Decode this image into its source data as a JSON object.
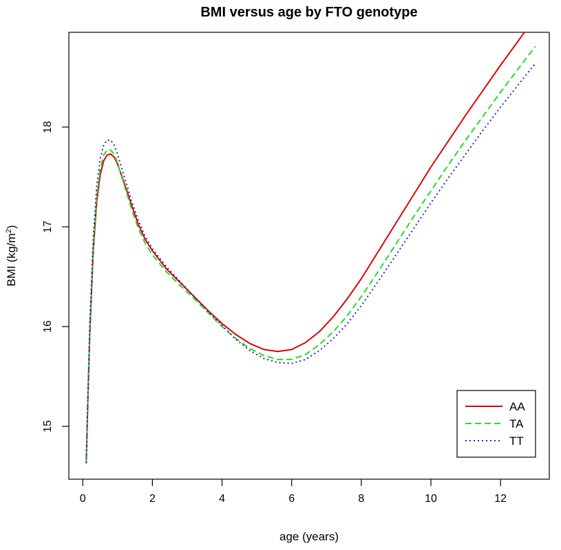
{
  "chart_data": {
    "type": "line",
    "title": "BMI versus age by FTO genotype",
    "xlabel": "age (years)",
    "ylabel": {
      "main": "BMI  (kg/m",
      "sup": "2",
      "end": ")"
    },
    "xlim": [
      -0.4,
      13.4
    ],
    "ylim": [
      14.47,
      18.95
    ],
    "xticks": [
      0,
      2,
      4,
      6,
      8,
      10,
      12
    ],
    "yticks": [
      15,
      16,
      17,
      18
    ],
    "legend_position": "bottom-right",
    "series": [
      {
        "name": "AA",
        "color": "#dd0000",
        "style": "solid",
        "x": [
          0.1,
          0.15,
          0.2,
          0.3,
          0.4,
          0.5,
          0.6,
          0.7,
          0.8,
          0.9,
          1.0,
          1.1,
          1.25,
          1.4,
          1.6,
          1.8,
          2.0,
          2.4,
          2.8,
          3.2,
          3.6,
          4.0,
          4.4,
          4.8,
          5.2,
          5.6,
          6.0,
          6.4,
          6.8,
          7.2,
          7.6,
          8.0,
          8.5,
          9.0,
          9.5,
          10.0,
          10.5,
          11.0,
          11.5,
          12.0,
          12.5,
          13.0
        ],
        "y": [
          14.63,
          15.3,
          15.9,
          16.75,
          17.25,
          17.52,
          17.66,
          17.72,
          17.73,
          17.7,
          17.63,
          17.53,
          17.38,
          17.22,
          17.02,
          16.87,
          16.76,
          16.58,
          16.44,
          16.3,
          16.16,
          16.03,
          15.92,
          15.83,
          15.77,
          15.75,
          15.77,
          15.84,
          15.95,
          16.1,
          16.28,
          16.48,
          16.76,
          17.04,
          17.32,
          17.6,
          17.86,
          18.12,
          18.37,
          18.62,
          18.86,
          19.1
        ]
      },
      {
        "name": "TA",
        "color": "#22dd22",
        "style": "dashed",
        "x": [
          0.1,
          0.15,
          0.2,
          0.3,
          0.4,
          0.5,
          0.6,
          0.7,
          0.8,
          0.9,
          1.0,
          1.1,
          1.25,
          1.4,
          1.6,
          1.8,
          2.0,
          2.4,
          2.8,
          3.2,
          3.6,
          4.0,
          4.4,
          4.8,
          5.2,
          5.6,
          6.0,
          6.4,
          6.8,
          7.2,
          7.6,
          8.0,
          8.5,
          9.0,
          9.5,
          10.0,
          10.5,
          11.0,
          11.5,
          12.0,
          12.5,
          13.0
        ],
        "y": [
          14.63,
          15.32,
          15.95,
          16.8,
          17.3,
          17.58,
          17.72,
          17.77,
          17.77,
          17.73,
          17.64,
          17.52,
          17.35,
          17.18,
          16.98,
          16.83,
          16.72,
          16.55,
          16.41,
          16.28,
          16.14,
          16.0,
          15.88,
          15.78,
          15.71,
          15.67,
          15.67,
          15.72,
          15.82,
          15.95,
          16.11,
          16.3,
          16.56,
          16.83,
          17.1,
          17.36,
          17.62,
          17.87,
          18.11,
          18.35,
          18.58,
          18.81
        ]
      },
      {
        "name": "TT",
        "color": "#2222cc",
        "style": "dotted",
        "x": [
          0.1,
          0.15,
          0.2,
          0.3,
          0.4,
          0.5,
          0.6,
          0.7,
          0.8,
          0.9,
          1.0,
          1.1,
          1.25,
          1.4,
          1.6,
          1.8,
          2.0,
          2.4,
          2.8,
          3.2,
          3.6,
          4.0,
          4.4,
          4.8,
          5.2,
          5.6,
          6.0,
          6.4,
          6.8,
          7.2,
          7.6,
          8.0,
          8.5,
          9.0,
          9.5,
          10.0,
          10.5,
          11.0,
          11.5,
          12.0,
          12.5,
          13.0
        ],
        "y": [
          14.63,
          15.35,
          16.0,
          16.88,
          17.4,
          17.68,
          17.82,
          17.87,
          17.87,
          17.82,
          17.73,
          17.61,
          17.44,
          17.26,
          17.06,
          16.9,
          16.78,
          16.6,
          16.45,
          16.3,
          16.15,
          16.01,
          15.87,
          15.76,
          15.68,
          15.64,
          15.63,
          15.67,
          15.76,
          15.88,
          16.03,
          16.21,
          16.46,
          16.72,
          16.98,
          17.24,
          17.49,
          17.73,
          17.97,
          18.2,
          18.42,
          18.64
        ]
      }
    ]
  }
}
